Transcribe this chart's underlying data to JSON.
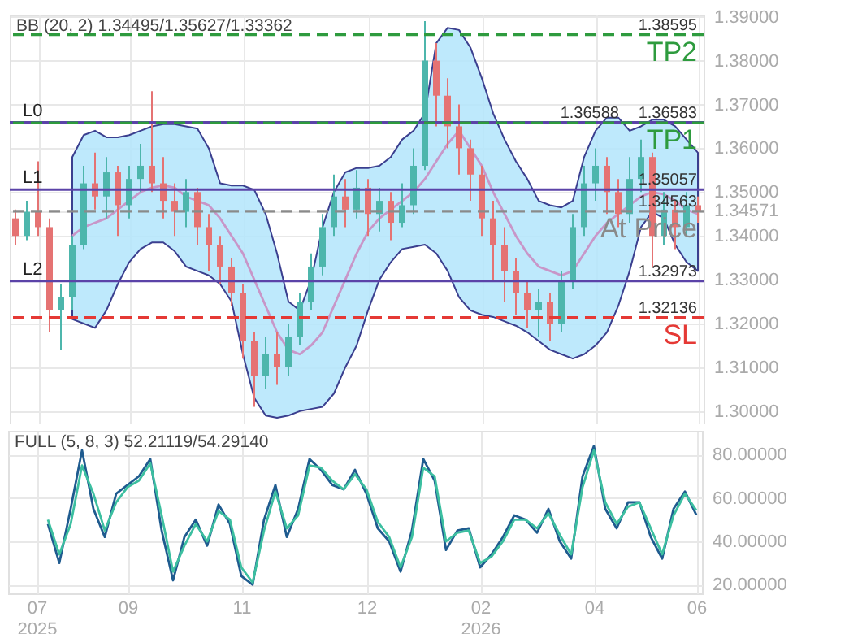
{
  "chart_data": [
    {
      "type": "candlestick",
      "categories": [
        null,
        null,
        null,
        null,
        null,
        null,
        null,
        null,
        null,
        null,
        null,
        null,
        null,
        null,
        null,
        null,
        null,
        null,
        null,
        null,
        null,
        null,
        null,
        null,
        null,
        null,
        null,
        null,
        null,
        null,
        null,
        null,
        null,
        null,
        null,
        null,
        null,
        null,
        null,
        null,
        null,
        null,
        null,
        null,
        null,
        null,
        null,
        null,
        null,
        null,
        null,
        null,
        null,
        null,
        null,
        null,
        null,
        null,
        null,
        null,
        null
      ],
      "ohlc": [
        [
          1.344,
          1.346,
          1.338,
          1.34
        ],
        [
          1.34,
          1.348,
          1.339,
          1.3455
        ],
        [
          1.3455,
          1.357,
          1.34,
          1.342
        ],
        [
          1.342,
          1.344,
          1.318,
          1.323
        ],
        [
          1.323,
          1.329,
          1.314,
          1.326
        ],
        [
          1.326,
          1.34,
          1.323,
          1.338
        ],
        [
          1.338,
          1.356,
          1.337,
          1.352
        ],
        [
          1.352,
          1.359,
          1.346,
          1.349
        ],
        [
          1.349,
          1.358,
          1.344,
          1.3545
        ],
        [
          1.3545,
          1.356,
          1.34,
          1.347
        ],
        [
          1.347,
          1.356,
          1.344,
          1.353
        ],
        [
          1.353,
          1.361,
          1.35,
          1.356
        ],
        [
          1.356,
          1.373,
          1.35,
          1.352
        ],
        [
          1.352,
          1.358,
          1.344,
          1.348
        ],
        [
          1.348,
          1.352,
          1.34,
          1.3455
        ],
        [
          1.3455,
          1.353,
          1.342,
          1.35
        ],
        [
          1.35,
          1.351,
          1.338,
          1.342
        ],
        [
          1.342,
          1.345,
          1.332,
          1.338
        ],
        [
          1.338,
          1.34,
          1.329,
          1.333
        ],
        [
          1.333,
          1.335,
          1.324,
          1.327
        ],
        [
          1.327,
          1.329,
          1.312,
          1.316
        ],
        [
          1.316,
          1.318,
          1.301,
          1.308
        ],
        [
          1.308,
          1.317,
          1.305,
          1.313
        ],
        [
          1.313,
          1.318,
          1.306,
          1.31
        ],
        [
          1.31,
          1.32,
          1.308,
          1.317
        ],
        [
          1.317,
          1.327,
          1.315,
          1.325
        ],
        [
          1.325,
          1.336,
          1.323,
          1.333
        ],
        [
          1.333,
          1.345,
          1.331,
          1.342
        ],
        [
          1.342,
          1.354,
          1.34,
          1.349
        ],
        [
          1.349,
          1.353,
          1.342,
          1.346
        ],
        [
          1.346,
          1.355,
          1.344,
          1.351
        ],
        [
          1.351,
          1.353,
          1.34,
          1.345
        ],
        [
          1.345,
          1.351,
          1.341,
          1.348
        ],
        [
          1.348,
          1.35,
          1.339,
          1.343
        ],
        [
          1.343,
          1.352,
          1.342,
          1.347
        ],
        [
          1.347,
          1.36,
          1.345,
          1.356
        ],
        [
          1.356,
          1.389,
          1.355,
          1.38
        ],
        [
          1.38,
          1.384,
          1.365,
          1.372
        ],
        [
          1.372,
          1.376,
          1.36,
          1.365
        ],
        [
          1.365,
          1.37,
          1.354,
          1.36
        ],
        [
          1.36,
          1.362,
          1.348,
          1.354
        ],
        [
          1.354,
          1.356,
          1.34,
          1.344
        ],
        [
          1.344,
          1.348,
          1.33,
          1.338
        ],
        [
          1.338,
          1.342,
          1.325,
          1.332
        ],
        [
          1.332,
          1.335,
          1.322,
          1.327
        ],
        [
          1.327,
          1.33,
          1.319,
          1.323
        ],
        [
          1.323,
          1.328,
          1.317,
          1.325
        ],
        [
          1.325,
          1.327,
          1.316,
          1.32
        ],
        [
          1.32,
          1.332,
          1.318,
          1.33
        ],
        [
          1.33,
          1.345,
          1.328,
          1.342
        ],
        [
          1.342,
          1.356,
          1.34,
          1.352
        ],
        [
          1.352,
          1.36,
          1.348,
          1.356
        ],
        [
          1.356,
          1.358,
          1.345,
          1.35
        ],
        [
          1.35,
          1.353,
          1.342,
          1.345
        ],
        [
          1.345,
          1.358,
          1.343,
          1.353
        ],
        [
          1.353,
          1.362,
          1.35,
          1.358
        ],
        [
          1.358,
          1.359,
          1.333,
          1.34
        ],
        [
          1.34,
          1.35,
          1.338,
          1.346
        ],
        [
          1.346,
          1.348,
          1.337,
          1.342
        ],
        [
          1.342,
          1.35,
          1.34,
          1.347
        ],
        [
          1.347,
          1.349,
          1.343,
          1.3457
        ]
      ],
      "series": [
        {
          "type": "line",
          "color": "#c896c8",
          "values": [
            null,
            null,
            null,
            null,
            null,
            1.34,
            1.342,
            1.343,
            1.344,
            1.346,
            1.348,
            1.35,
            1.351,
            1.3515,
            1.351,
            1.349,
            1.348,
            1.347,
            1.344,
            1.34,
            1.336,
            1.33,
            1.324,
            1.318,
            1.314,
            1.313,
            1.315,
            1.318,
            1.324,
            1.33,
            1.336,
            1.341,
            1.344,
            1.346,
            1.348,
            1.35,
            1.353,
            1.357,
            1.361,
            1.364,
            1.36,
            1.356,
            1.35,
            1.345,
            1.34,
            1.336,
            1.333,
            1.332,
            1.331,
            1.332,
            1.336,
            1.34,
            1.343,
            1.345,
            1.347,
            1.349,
            1.35,
            1.3495,
            1.348,
            1.346,
            1.345
          ],
          "lower": [
            null,
            null,
            null,
            null,
            null,
            1.321,
            1.32,
            1.319,
            1.323,
            1.329,
            1.334,
            1.337,
            1.3385,
            1.3385,
            1.3365,
            1.333,
            1.332,
            1.331,
            1.329,
            1.325,
            1.313,
            1.303,
            1.299,
            1.2985,
            1.299,
            1.3,
            1.3005,
            1.301,
            1.304,
            1.31,
            1.315,
            1.323,
            1.33,
            1.334,
            1.337,
            1.3375,
            1.338,
            1.336,
            1.332,
            1.326,
            1.323,
            1.322,
            1.3215,
            1.3205,
            1.3195,
            1.318,
            1.316,
            1.314,
            1.313,
            1.312,
            1.313,
            1.315,
            1.318,
            1.324,
            1.332,
            1.342,
            1.3455,
            1.344,
            1.338,
            1.334,
            1.332
          ],
          "upper": [
            null,
            null,
            null,
            null,
            null,
            1.358,
            1.363,
            1.364,
            1.3625,
            1.3625,
            1.363,
            1.364,
            1.365,
            1.3655,
            1.3655,
            1.365,
            1.3645,
            1.36,
            1.352,
            1.3515,
            1.3515,
            1.3505,
            1.345,
            1.336,
            1.325,
            1.323,
            1.33,
            1.342,
            1.35,
            1.3545,
            1.3555,
            1.3555,
            1.356,
            1.358,
            1.362,
            1.364,
            1.368,
            1.384,
            1.3875,
            1.387,
            1.383,
            1.376,
            1.368,
            1.362,
            1.357,
            1.353,
            1.348,
            1.347,
            1.3465,
            1.348,
            1.358,
            1.364,
            1.367,
            1.367,
            1.364,
            1.365,
            1.3665,
            1.3665,
            1.365,
            1.362,
            1.359
          ]
        }
      ],
      "ylim": [
        1.297,
        1.3905
      ],
      "yticks": [
        {
          "value": 1.3,
          "label": "1.30000"
        },
        {
          "value": 1.31,
          "label": "1.31000"
        },
        {
          "value": 1.32,
          "label": "1.32000"
        },
        {
          "value": 1.33,
          "label": "1.33000"
        },
        {
          "value": 1.34,
          "label": "1.34000"
        },
        {
          "value": 1.34571,
          "label": "1.34571"
        },
        {
          "value": 1.35,
          "label": "1.35000"
        },
        {
          "value": 1.36,
          "label": "1.36000"
        },
        {
          "value": 1.37,
          "label": "1.37000"
        },
        {
          "value": 1.38,
          "label": "1.38000"
        },
        {
          "value": 1.39,
          "label": "1.39000"
        }
      ],
      "grid": true,
      "tick_labels": "y",
      "ref_lines": [
        {
          "axis": "y",
          "value": 1.38595,
          "label": "TP2",
          "color": "#2e9b3e",
          "line_style": "dashed"
        },
        {
          "axis": "y",
          "value": 1.36588,
          "label": "L0",
          "color": "#5b43a8",
          "line_style": "solid"
        },
        {
          "axis": "y",
          "value": 1.36583,
          "label": "TP1",
          "color": "#2e9b3e",
          "line_style": "dashed"
        },
        {
          "axis": "y",
          "value": 1.35057,
          "label": "L1",
          "color": "#5b43a8",
          "line_style": "solid"
        },
        {
          "axis": "y",
          "value": 1.34563,
          "label": "At Price",
          "color": "#8a8a8a",
          "line_style": "dashed"
        },
        {
          "axis": "y",
          "value": 1.32973,
          "label": "L2",
          "color": "#5b43a8",
          "line_style": "solid"
        },
        {
          "axis": "y",
          "value": 1.32136,
          "label": "SL",
          "color": "#e53935",
          "line_style": "dashed"
        }
      ],
      "annotations": [
        "BB (20, 2)  1.34495/1.35627/1.33362",
        {
          "text": "1.38595",
          "y": 1.38595
        },
        {
          "text": "1.36583",
          "y": 1.36583
        },
        {
          "text": "1.36588",
          "y": 1.36588
        },
        {
          "text": "1.35057",
          "y": 1.35057
        },
        {
          "text": "1.34563",
          "y": 1.34563
        },
        {
          "text": "1.32973",
          "y": 1.32973
        },
        {
          "text": "1.32136",
          "y": 1.32136
        }
      ]
    },
    {
      "type": "line",
      "categories": [
        null,
        null,
        "07\n2025",
        null,
        null,
        null,
        null,
        null,
        null,
        null,
        "09",
        null,
        null,
        null,
        null,
        null,
        null,
        null,
        null,
        null,
        "11",
        null,
        null,
        null,
        null,
        null,
        null,
        null,
        null,
        null,
        null,
        "12",
        null,
        null,
        null,
        null,
        null,
        null,
        null,
        null,
        null,
        "02\n2026",
        null,
        null,
        null,
        null,
        null,
        null,
        null,
        null,
        null,
        "04",
        null,
        null,
        null,
        null,
        null,
        null,
        null,
        null,
        "06"
      ],
      "series": [
        {
          "color": "#1f5b8f",
          "values": [
            null,
            null,
            null,
            48,
            30,
            55,
            82,
            55,
            42,
            62,
            66,
            70,
            78,
            45,
            22,
            42,
            50,
            38,
            57,
            48,
            24,
            20,
            50,
            66,
            42,
            55,
            78,
            73,
            66,
            64,
            73,
            62,
            46,
            40,
            26,
            45,
            78,
            68,
            36,
            45,
            46,
            28,
            34,
            42,
            52,
            50,
            44,
            55,
            40,
            32,
            70,
            84,
            55,
            46,
            58,
            58,
            42,
            32,
            55,
            63,
            52.21
          ]
        },
        {
          "color": "#3cbfa0",
          "values": [
            null,
            null,
            null,
            50,
            34,
            48,
            75,
            62,
            45,
            58,
            65,
            68,
            76,
            52,
            26,
            38,
            48,
            40,
            54,
            50,
            28,
            21,
            45,
            63,
            46,
            52,
            75,
            74,
            68,
            64,
            71,
            64,
            49,
            42,
            28,
            42,
            74,
            70,
            40,
            44,
            45,
            30,
            33,
            40,
            50,
            50,
            46,
            53,
            43,
            34,
            65,
            82,
            58,
            48,
            56,
            58,
            46,
            34,
            52,
            62,
            54.29
          ]
        }
      ],
      "ylim": [
        16,
        91
      ],
      "yticks": [
        {
          "value": 20,
          "label": "20.00000"
        },
        {
          "value": 40,
          "label": "40.00000"
        },
        {
          "value": 60,
          "label": "60.00000"
        },
        {
          "value": 80,
          "label": "80.00000"
        }
      ],
      "grid": true,
      "annotations": [
        "FULL (5, 8, 3)  52.21119/54.29140"
      ]
    }
  ]
}
